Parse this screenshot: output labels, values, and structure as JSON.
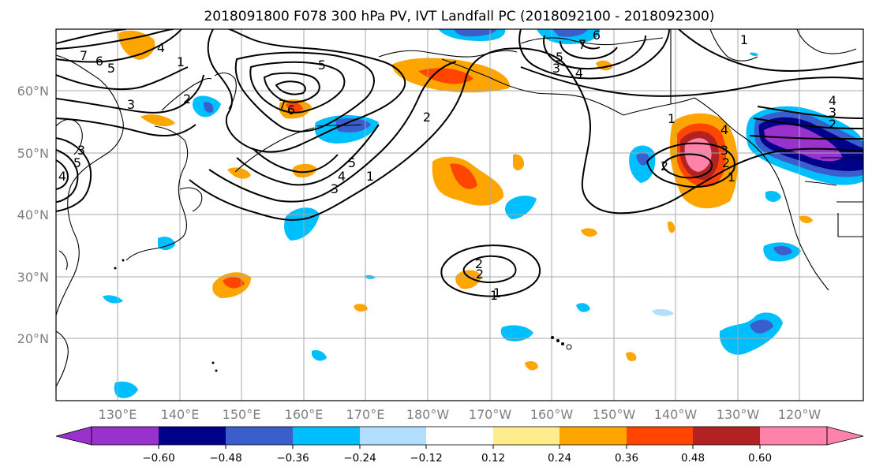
{
  "title": "2018091800 F078 300 hPa PV, IVT Landfall PC (2018092100 - 2018092300)",
  "lat_labels": [
    "60°N",
    "50°N",
    "40°N",
    "30°N",
    "20°N"
  ],
  "lon_labels": [
    "130°E",
    "140°E",
    "150°E",
    "160°E",
    "170°E",
    "180°W",
    "170°W",
    "160°W",
    "150°W",
    "140°W",
    "130°W",
    "120°W"
  ],
  "colorbar": {
    "ticks": [
      "−0.60",
      "−0.48",
      "−0.36",
      "−0.24",
      "−0.12",
      "0.12",
      "0.24",
      "0.36",
      "0.48",
      "0.60"
    ],
    "colors": [
      "#9932cc",
      "#00008b",
      "#3a5fcd",
      "#00bfff",
      "#b2dfff",
      "#ffffff",
      "#ffec8b",
      "#ffa500",
      "#ff4500",
      "#b22222",
      "#ff82ab"
    ]
  },
  "contour_labels": [
    "7",
    "6",
    "5",
    "4",
    "1",
    "3",
    "2",
    "3",
    "4",
    "5",
    "5",
    "6",
    "7",
    "2",
    "1",
    "3",
    "4",
    "5",
    "1",
    "1",
    "2",
    "7",
    "6",
    "5",
    "3",
    "4",
    "1",
    "4",
    "3",
    "2",
    "1",
    "2",
    "3",
    "4",
    "2",
    "2",
    "1"
  ]
}
